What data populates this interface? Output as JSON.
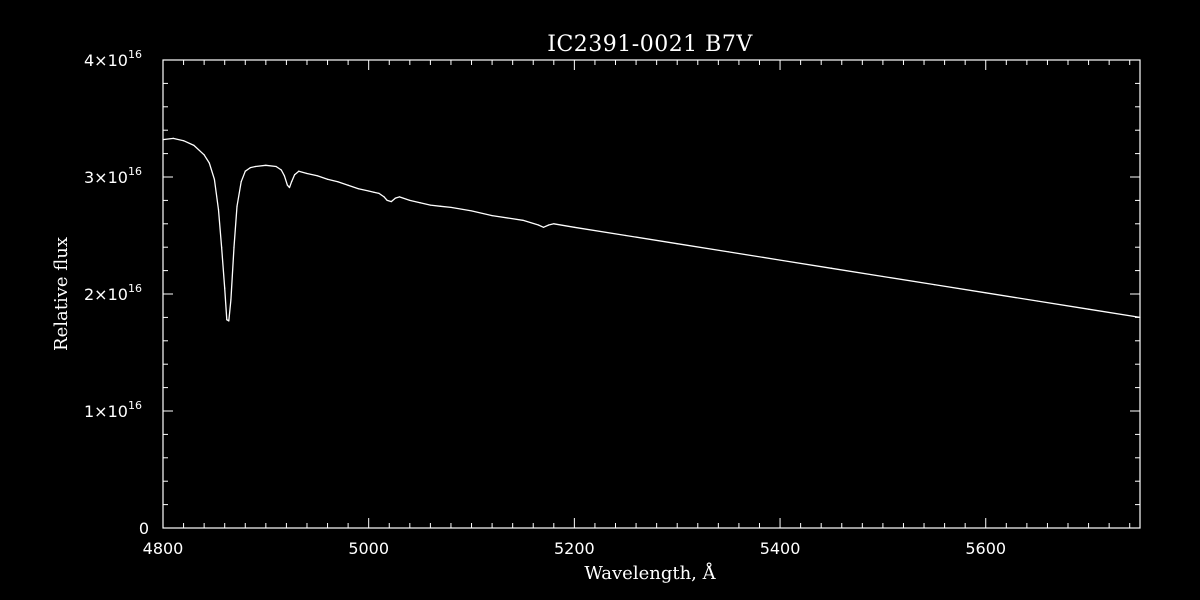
{
  "chart_data": {
    "type": "line",
    "title": "IC2391-0021   B7V",
    "xlabel": "Wavelength, Å",
    "ylabel": "Relative flux",
    "xlim": [
      4800,
      5750
    ],
    "ylim": [
      0,
      4e+16
    ],
    "x_ticks": [
      4800,
      5000,
      5200,
      5400,
      5600
    ],
    "x_tick_labels": [
      "4800",
      "5000",
      "5200",
      "5400",
      "5600"
    ],
    "y_ticks": [
      0,
      1e+16,
      2e+16,
      3e+16,
      4e+16
    ],
    "y_tick_labels": [
      {
        "mantissa": "0",
        "exponent": ""
      },
      {
        "mantissa": "1×10",
        "exponent": "16"
      },
      {
        "mantissa": "2×10",
        "exponent": "16"
      },
      {
        "mantissa": "3×10",
        "exponent": "16"
      },
      {
        "mantissa": "4×10",
        "exponent": "16"
      }
    ],
    "grid": false,
    "line_color": "#ffffff",
    "background": "#000000",
    "series": [
      {
        "x": [
          4800,
          4810,
          4820,
          4830,
          4840,
          4845,
          4850,
          4854,
          4857,
          4860,
          4862,
          4864,
          4866,
          4869,
          4872,
          4876,
          4880,
          4885,
          4890,
          4900,
          4910,
          4915,
          4918,
          4921,
          4923,
          4925,
          4928,
          4932,
          4940,
          4950,
          4960,
          4970,
          4980,
          4990,
          5000,
          5005,
          5010,
          5015,
          5018,
          5022,
          5026,
          5030,
          5040,
          5050,
          5060,
          5070,
          5080,
          5100,
          5120,
          5150,
          5165,
          5170,
          5175,
          5180,
          5200,
          5250,
          5300,
          5350,
          5400,
          5450,
          5500,
          5550,
          5600,
          5650,
          5700,
          5750
        ],
        "y": [
          3.32e+16,
          3.33e+16,
          3.31e+16,
          3.27e+16,
          3.19e+16,
          3.12e+16,
          2.98e+16,
          2.72e+16,
          2.4e+16,
          2.05e+16,
          1.78e+16,
          1.77e+16,
          1.95e+16,
          2.4e+16,
          2.75e+16,
          2.96e+16,
          3.05e+16,
          3.08e+16,
          3.09e+16,
          3.1e+16,
          3.09e+16,
          3.06e+16,
          3.01e+16,
          2.93e+16,
          2.91e+16,
          2.96e+16,
          3.02e+16,
          3.05e+16,
          3.03e+16,
          3.01e+16,
          2.98e+16,
          2.96e+16,
          2.93e+16,
          2.9e+16,
          2.88e+16,
          2.87e+16,
          2.86e+16,
          2.83e+16,
          2.8e+16,
          2.79e+16,
          2.82e+16,
          2.83e+16,
          2.8e+16,
          2.78e+16,
          2.76e+16,
          2.75e+16,
          2.74e+16,
          2.71e+16,
          2.67e+16,
          2.63e+16,
          2.59e+16,
          2.57e+16,
          2.59e+16,
          2.6e+16,
          2.57e+16,
          2.5e+16,
          2.43e+16,
          2.36e+16,
          2.29e+16,
          2.22e+16,
          2.15e+16,
          2.08e+16,
          2.01e+16,
          1.94e+16,
          1.87e+16,
          1.8e+16
        ]
      }
    ]
  }
}
